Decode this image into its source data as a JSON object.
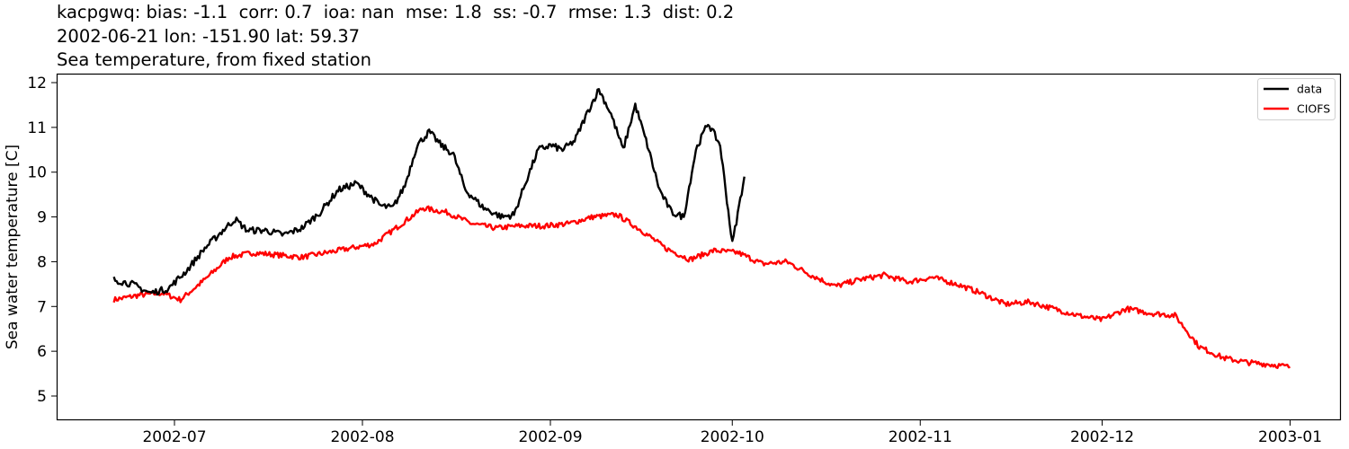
{
  "header": {
    "line1": "kacpgwq: bias: -1.1  corr: 0.7  ioa: nan  mse: 1.8  ss: -0.7  rmse: 1.3  dist: 0.2",
    "line2": "2002-06-21 lon: -151.90 lat: 59.37",
    "line3": "Sea temperature, from fixed station"
  },
  "legend": {
    "items": [
      {
        "label": "data",
        "color": "#000000"
      },
      {
        "label": "CIOFS",
        "color": "#ff0000"
      }
    ]
  },
  "chart_data": {
    "type": "line",
    "title": "kacpgwq: bias: -1.1  corr: 0.7  ioa: nan  mse: 1.8  ss: -0.7  rmse: 1.3  dist: 0.2 / 2002-06-21 lon: -151.90 lat: 59.37 / Sea temperature, from fixed station",
    "xlabel": "",
    "ylabel": "Sea water temperature [C]",
    "ylim": [
      4.5,
      12.2
    ],
    "xlim": [
      "2002-06-11",
      "2003-01-10"
    ],
    "yticks": [
      5,
      6,
      7,
      8,
      9,
      10,
      11,
      12
    ],
    "xticks": [
      "2002-07",
      "2002-08",
      "2002-09",
      "2002-10",
      "2002-11",
      "2002-12",
      "2003-01"
    ],
    "grid": false,
    "legend_position": "upper right",
    "series": [
      {
        "name": "data",
        "color": "#000000",
        "x": [
          "2002-06-21",
          "2002-06-24",
          "2002-06-27",
          "2002-06-30",
          "2002-07-03",
          "2002-07-06",
          "2002-07-09",
          "2002-07-11",
          "2002-07-13",
          "2002-07-16",
          "2002-07-19",
          "2002-07-22",
          "2002-07-25",
          "2002-07-28",
          "2002-07-31",
          "2002-08-02",
          "2002-08-04",
          "2002-08-06",
          "2002-08-08",
          "2002-08-10",
          "2002-08-12",
          "2002-08-14",
          "2002-08-16",
          "2002-08-18",
          "2002-08-21",
          "2002-08-24",
          "2002-08-26",
          "2002-08-28",
          "2002-08-30",
          "2002-09-01",
          "2002-09-03",
          "2002-09-05",
          "2002-09-07",
          "2002-09-09",
          "2002-09-11",
          "2002-09-13",
          "2002-09-15",
          "2002-09-17",
          "2002-09-19",
          "2002-09-21",
          "2002-09-23",
          "2002-09-25",
          "2002-09-27",
          "2002-09-29",
          "2002-10-01",
          "2002-10-03"
        ],
        "values": [
          7.6,
          7.5,
          7.3,
          7.4,
          7.8,
          8.3,
          8.7,
          8.95,
          8.7,
          8.7,
          8.6,
          8.75,
          9.1,
          9.6,
          9.75,
          9.5,
          9.25,
          9.2,
          9.7,
          10.6,
          10.9,
          10.6,
          10.4,
          9.6,
          9.2,
          9.0,
          9.05,
          9.8,
          10.5,
          10.6,
          10.5,
          10.7,
          11.3,
          11.85,
          11.3,
          10.5,
          11.5,
          10.6,
          9.6,
          9.1,
          9.0,
          10.5,
          11.1,
          10.6,
          8.4,
          9.9
        ]
      },
      {
        "name": "CIOFS",
        "color": "#ff0000",
        "x": [
          "2002-06-21",
          "2002-06-25",
          "2002-06-29",
          "2002-07-02",
          "2002-07-06",
          "2002-07-10",
          "2002-07-14",
          "2002-07-18",
          "2002-07-22",
          "2002-07-26",
          "2002-07-30",
          "2002-08-03",
          "2002-08-07",
          "2002-08-11",
          "2002-08-15",
          "2002-08-19",
          "2002-08-23",
          "2002-08-27",
          "2002-08-31",
          "2002-09-04",
          "2002-09-08",
          "2002-09-12",
          "2002-09-16",
          "2002-09-20",
          "2002-09-24",
          "2002-09-28",
          "2002-10-02",
          "2002-10-06",
          "2002-10-10",
          "2002-10-14",
          "2002-10-18",
          "2002-10-22",
          "2002-10-26",
          "2002-10-30",
          "2002-11-03",
          "2002-11-07",
          "2002-11-11",
          "2002-11-15",
          "2002-11-19",
          "2002-11-23",
          "2002-11-27",
          "2002-12-01",
          "2002-12-05",
          "2002-12-09",
          "2002-12-13",
          "2002-12-17",
          "2002-12-21",
          "2002-12-25",
          "2002-12-29",
          "2003-01-01"
        ],
        "values": [
          7.15,
          7.25,
          7.3,
          7.15,
          7.6,
          8.1,
          8.2,
          8.15,
          8.1,
          8.2,
          8.3,
          8.4,
          8.8,
          9.2,
          9.1,
          8.85,
          8.75,
          8.8,
          8.8,
          8.85,
          9.0,
          9.05,
          8.7,
          8.3,
          8.05,
          8.25,
          8.2,
          7.95,
          8.0,
          7.7,
          7.45,
          7.6,
          7.7,
          7.55,
          7.65,
          7.5,
          7.3,
          7.05,
          7.1,
          6.95,
          6.8,
          6.7,
          6.95,
          6.85,
          6.8,
          6.1,
          5.85,
          5.75,
          5.7,
          5.65
        ]
      }
    ]
  }
}
